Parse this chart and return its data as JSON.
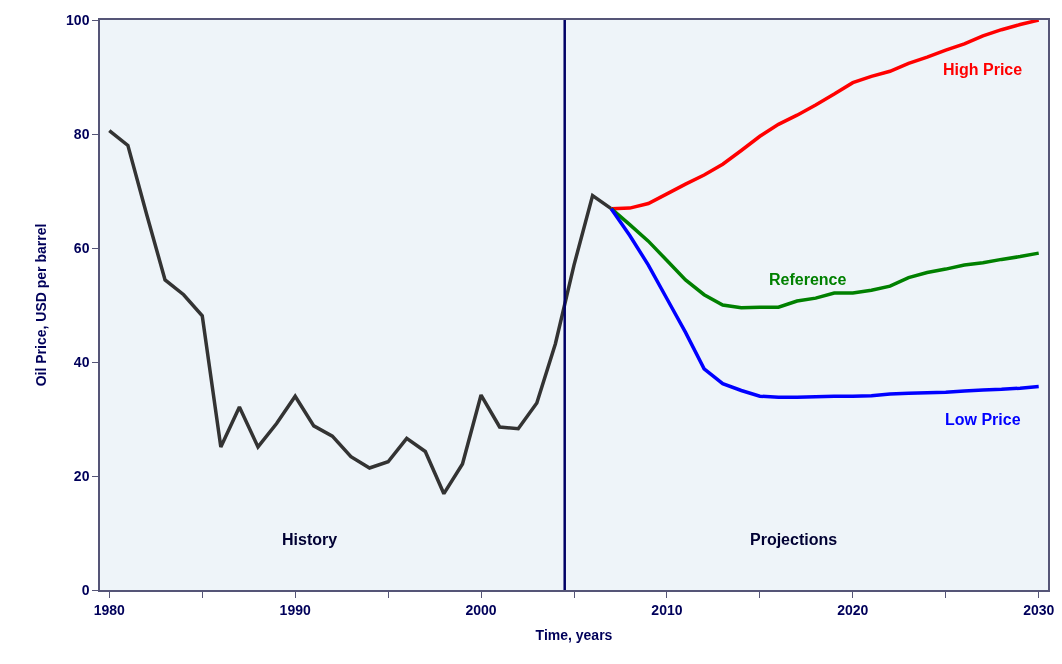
{
  "chart_data": {
    "type": "line",
    "xlabel": "Time, years",
    "ylabel": "Oil Price, USD per barrel",
    "xlim": [
      1979.5,
      2030.5
    ],
    "xticks": [
      1980,
      {
        "value": 1985,
        "label": null
      },
      1990,
      {
        "value": 1995,
        "label": null
      },
      2000,
      {
        "value": 2005,
        "label": null
      },
      2010,
      {
        "value": 2015,
        "label": null
      },
      2020,
      {
        "value": 2025,
        "label": null
      },
      2030
    ],
    "ylim": [
      0,
      100
    ],
    "yticks": [
      0,
      20,
      40,
      60,
      80,
      100
    ],
    "grid": false,
    "legend": false,
    "marker": "none",
    "line_style": "solid",
    "ref_lines": [
      {
        "axis": "x",
        "value": 2004.5,
        "color": "#000066"
      }
    ],
    "annotations": [
      "History",
      "Projections"
    ],
    "series": [
      {
        "color": "#333333",
        "x": [
          1980,
          1981,
          1982,
          1983,
          1984,
          1985,
          1986,
          1987,
          1988,
          1989,
          1990,
          1991,
          1992,
          1993,
          1994,
          1995,
          1996,
          1997,
          1998,
          1999,
          2000,
          2001,
          2002,
          2003,
          2004,
          2005,
          2006,
          2007
        ],
        "values": [
          80.6,
          78,
          66,
          54.4,
          51.8,
          48.1,
          25.1,
          32.1,
          25.1,
          29.2,
          34,
          28.8,
          27,
          23.4,
          21.4,
          22.5,
          26.6,
          24.3,
          16.9,
          22.1,
          34.2,
          28.6,
          28.3,
          32.8,
          43.2,
          57,
          69.2,
          66.9
        ]
      },
      {
        "name": "High Price",
        "color": "#ff0000",
        "x": [
          2007,
          2008,
          2009,
          2010,
          2011,
          2012,
          2013,
          2014,
          2015,
          2016,
          2017,
          2018,
          2019,
          2020,
          2021,
          2022,
          2023,
          2024,
          2025,
          2026,
          2027,
          2028,
          2029,
          2030
        ],
        "values": [
          66.9,
          67,
          67.8,
          69.5,
          71.2,
          72.8,
          74.7,
          77.1,
          79.6,
          81.7,
          83.3,
          85.1,
          87,
          89,
          90.1,
          91,
          92.4,
          93.5,
          94.7,
          95.8,
          97.2,
          98.3,
          99.2,
          100
        ]
      },
      {
        "name": "Reference",
        "color": "#008000",
        "x": [
          2007,
          2008,
          2009,
          2010,
          2011,
          2012,
          2013,
          2014,
          2015,
          2016,
          2017,
          2018,
          2019,
          2020,
          2021,
          2022,
          2023,
          2024,
          2025,
          2026,
          2027,
          2028,
          2029,
          2030
        ],
        "values": [
          66.9,
          64.1,
          61.2,
          57.8,
          54.4,
          51.8,
          50,
          49.5,
          49.6,
          49.6,
          50.7,
          51.2,
          52.1,
          52.1,
          52.6,
          53.3,
          54.8,
          55.7,
          56.3,
          57,
          57.4,
          58,
          58.5,
          59.1
        ]
      },
      {
        "name": "Low Price",
        "color": "#0000ff",
        "x": [
          2007,
          2008,
          2009,
          2010,
          2011,
          2012,
          2013,
          2014,
          2015,
          2016,
          2017,
          2018,
          2019,
          2020,
          2021,
          2022,
          2023,
          2024,
          2025,
          2026,
          2027,
          2028,
          2029,
          2030
        ],
        "values": [
          66.9,
          62.2,
          57,
          51.1,
          45.2,
          38.8,
          36.2,
          35,
          34,
          33.8,
          33.8,
          33.9,
          34,
          34,
          34.1,
          34.4,
          34.5,
          34.6,
          34.7,
          34.9,
          35.1,
          35.2,
          35.4,
          35.7
        ]
      }
    ]
  }
}
